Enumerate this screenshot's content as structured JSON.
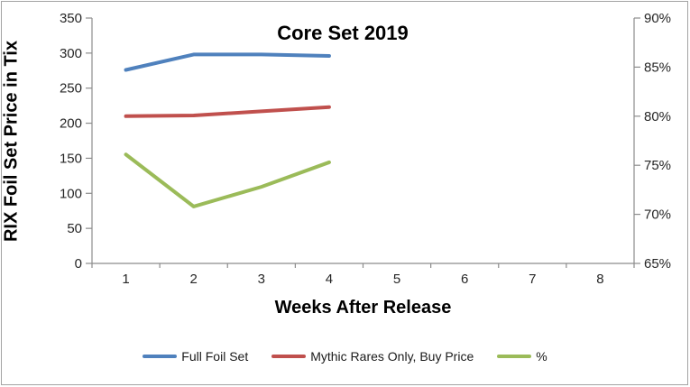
{
  "window": {
    "background": "#ffffff",
    "border_color": "#a3a3a3"
  },
  "chart_data": {
    "type": "line",
    "title": "Core Set 2019",
    "xlabel": "Weeks After Release",
    "ylabel": "RIX Foil Set Price in Tix",
    "x_ticks": [
      "1",
      "2",
      "3",
      "4",
      "5",
      "6",
      "7",
      "8"
    ],
    "x_range": [
      0,
      8
    ],
    "left_axis": {
      "min": 0,
      "max": 350,
      "step": 50,
      "suffix": ""
    },
    "right_axis": {
      "min": 65,
      "max": 90,
      "step": 5,
      "suffix": "%"
    },
    "grid": false,
    "legend_position": "bottom",
    "axis_color": "#8c8c8c",
    "tick_label_color": "#262626",
    "series": [
      {
        "name": "Full Foil Set",
        "color": "#4F81BD",
        "axis": "left",
        "x": [
          1,
          2,
          3,
          4
        ],
        "values": [
          276,
          298,
          298,
          296
        ]
      },
      {
        "name": "Mythic Rares Only, Buy Price",
        "color": "#C0504D",
        "axis": "left",
        "x": [
          1,
          2,
          3,
          4
        ],
        "values": [
          210,
          211,
          217,
          223
        ]
      },
      {
        "name": "%",
        "color": "#9BBB59",
        "axis": "right",
        "x": [
          1,
          2,
          3,
          4
        ],
        "values": [
          76.1,
          70.8,
          72.8,
          75.3
        ]
      }
    ]
  }
}
